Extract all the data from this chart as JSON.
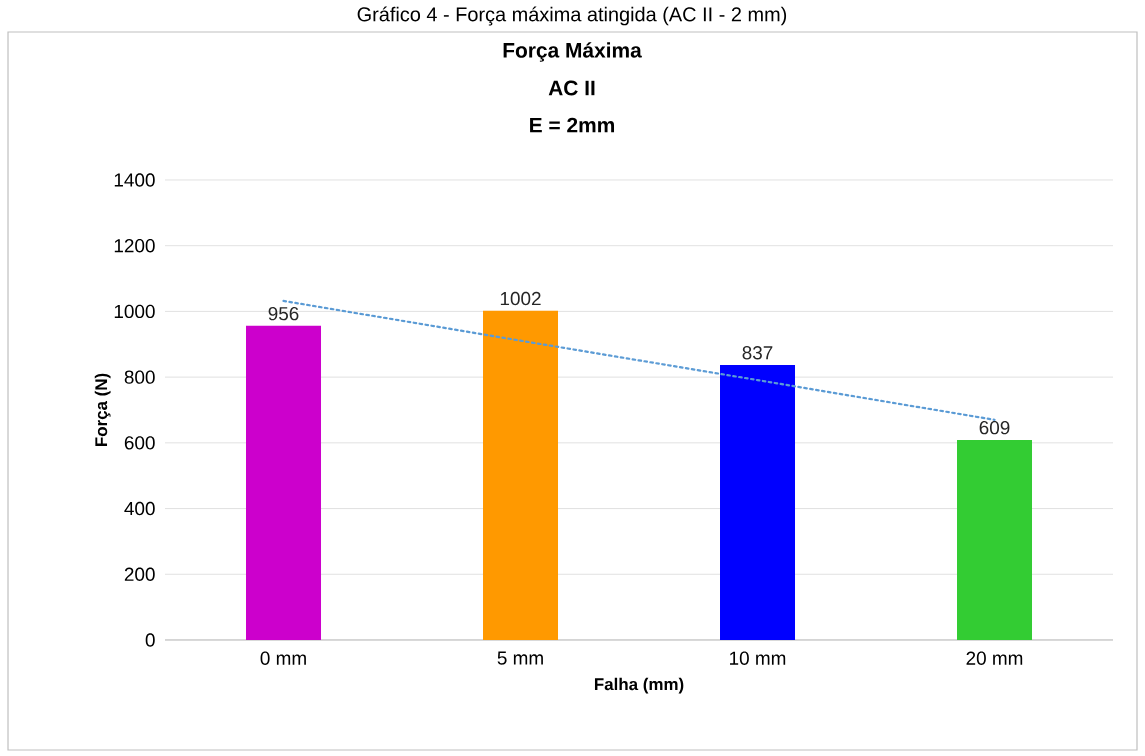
{
  "chart_data": {
    "type": "bar",
    "title": "Força Máxima",
    "subtitle": "AC II",
    "annotations": [
      "E = 2mm",
      "Gráfico 4 - Força máxima atingida (AC II - 2 mm)"
    ],
    "xlabel": "Falha (mm)",
    "ylabel": "Força (N)",
    "categories": [
      "0 mm",
      "5 mm",
      "10 mm",
      "20 mm"
    ],
    "values": [
      956,
      1002,
      837,
      609
    ],
    "colors": [
      "#cc00cc",
      "#ff9900",
      "#0000ff",
      "#33cc33"
    ],
    "value_labels": [
      "956",
      "1002",
      "837",
      "609"
    ],
    "series": [
      {
        "type": "line",
        "values": [
          1032,
          911,
          791,
          670
        ],
        "color": "#5b9bd5",
        "line_style": "dotted",
        "marker": "none"
      }
    ],
    "ylim": [
      0,
      1400
    ],
    "yticks": [
      0,
      200,
      400,
      600,
      800,
      1000,
      1200,
      1400
    ],
    "grid": "y"
  }
}
